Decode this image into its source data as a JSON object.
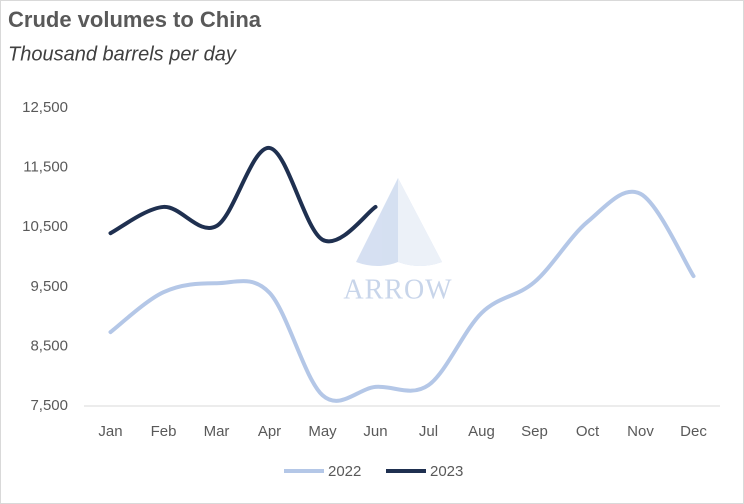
{
  "chart_data": {
    "type": "line",
    "title": "Crude volumes to China",
    "subtitle": "Thousand barrels per day",
    "watermark": "ARROW",
    "categories": [
      "Jan",
      "Feb",
      "Mar",
      "Apr",
      "May",
      "Jun",
      "Jul",
      "Aug",
      "Sep",
      "Oct",
      "Nov",
      "Dec"
    ],
    "series": [
      {
        "name": "2022",
        "color": "#b4c7e7",
        "values": [
          8740,
          9410,
          9560,
          9400,
          7680,
          7820,
          7850,
          9060,
          9580,
          10590,
          11060,
          9680
        ]
      },
      {
        "name": "2023",
        "color": "#1f3050",
        "values": [
          10400,
          10840,
          10520,
          11830,
          10290,
          10840,
          null,
          null,
          null,
          null,
          null,
          null
        ]
      }
    ],
    "ylim": [
      7500,
      12500
    ],
    "yticks": [
      {
        "value": 7500,
        "label": "7,500"
      },
      {
        "value": 8500,
        "label": "8,500"
      },
      {
        "value": 9500,
        "label": "9,500"
      },
      {
        "value": 10500,
        "label": "10,500"
      },
      {
        "value": 11500,
        "label": "11,500"
      },
      {
        "value": 12500,
        "label": "12,500"
      }
    ],
    "grid": false,
    "legend": "bottom"
  }
}
